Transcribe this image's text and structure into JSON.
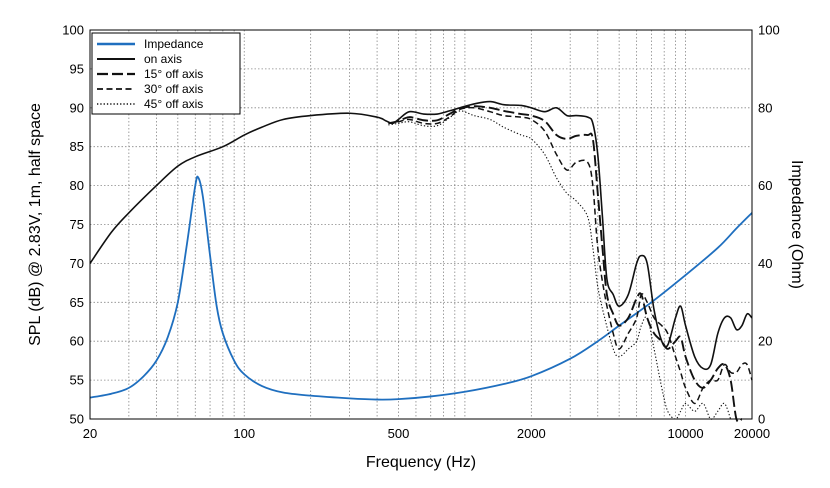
{
  "chart_data": {
    "type": "line",
    "xlabel": "Frequency (Hz)",
    "ylabel_left": "SPL (dB) @ 2.83V, 1m, half space",
    "ylabel_right": "Impedance (Ohm)",
    "x_scale": "log",
    "xlim": [
      20,
      20000
    ],
    "ylim_left": [
      50,
      100
    ],
    "ylim_right": [
      0,
      100
    ],
    "grid": true,
    "legend_position": "top-left",
    "x_tick_labels": [
      "20",
      "100",
      "500",
      "2000",
      "10000",
      "20000"
    ],
    "x_tick_values": [
      20,
      100,
      500,
      2000,
      10000,
      20000
    ],
    "y_left_ticks": [
      50,
      55,
      60,
      65,
      70,
      75,
      80,
      85,
      90,
      95,
      100
    ],
    "y_right_ticks": [
      0,
      20,
      40,
      60,
      80,
      100
    ],
    "series": [
      {
        "name": "Impedance",
        "axis": "right",
        "color": "#1f6fbf",
        "dash": "solid",
        "points": [
          [
            20,
            5.5
          ],
          [
            25,
            6.5
          ],
          [
            30,
            8
          ],
          [
            35,
            11
          ],
          [
            40,
            15
          ],
          [
            45,
            21
          ],
          [
            50,
            30
          ],
          [
            55,
            45
          ],
          [
            60,
            60
          ],
          [
            62,
            62
          ],
          [
            65,
            57
          ],
          [
            70,
            42
          ],
          [
            75,
            29
          ],
          [
            80,
            22
          ],
          [
            90,
            15
          ],
          [
            100,
            11.5
          ],
          [
            120,
            8.5
          ],
          [
            150,
            6.8
          ],
          [
            200,
            6
          ],
          [
            300,
            5.3
          ],
          [
            400,
            5
          ],
          [
            500,
            5.1
          ],
          [
            700,
            5.8
          ],
          [
            1000,
            7
          ],
          [
            1500,
            9
          ],
          [
            2000,
            11
          ],
          [
            3000,
            15.5
          ],
          [
            4000,
            20
          ],
          [
            5000,
            24
          ],
          [
            7000,
            30
          ],
          [
            10000,
            37
          ],
          [
            14000,
            44
          ],
          [
            17000,
            49
          ],
          [
            20000,
            53
          ]
        ]
      },
      {
        "name": "on axis",
        "axis": "left",
        "color": "#111111",
        "dash": "solid",
        "points": [
          [
            20,
            70
          ],
          [
            25,
            74
          ],
          [
            30,
            76.5
          ],
          [
            40,
            80
          ],
          [
            50,
            82.5
          ],
          [
            60,
            83.7
          ],
          [
            80,
            85
          ],
          [
            100,
            86.5
          ],
          [
            120,
            87.5
          ],
          [
            150,
            88.5
          ],
          [
            200,
            89
          ],
          [
            300,
            89.3
          ],
          [
            400,
            88.8
          ],
          [
            440,
            88.3
          ],
          [
            470,
            88
          ],
          [
            500,
            88.5
          ],
          [
            560,
            89.5
          ],
          [
            650,
            89.2
          ],
          [
            750,
            89.2
          ],
          [
            850,
            89.6
          ],
          [
            950,
            90
          ],
          [
            1100,
            90.5
          ],
          [
            1300,
            90.8
          ],
          [
            1500,
            90.4
          ],
          [
            1800,
            90.3
          ],
          [
            2000,
            90
          ],
          [
            2300,
            89.5
          ],
          [
            2600,
            90
          ],
          [
            2900,
            89
          ],
          [
            3200,
            89
          ],
          [
            3600,
            88.8
          ],
          [
            3800,
            88
          ],
          [
            4000,
            84
          ],
          [
            4200,
            76
          ],
          [
            4400,
            68
          ],
          [
            4700,
            66
          ],
          [
            5000,
            64.5
          ],
          [
            5500,
            66
          ],
          [
            6000,
            70
          ],
          [
            6300,
            71
          ],
          [
            6700,
            70
          ],
          [
            7200,
            64
          ],
          [
            7800,
            60
          ],
          [
            8300,
            59.5
          ],
          [
            9000,
            63
          ],
          [
            9500,
            64.5
          ],
          [
            10000,
            62
          ],
          [
            11000,
            58
          ],
          [
            12000,
            56.5
          ],
          [
            13000,
            57
          ],
          [
            14000,
            61
          ],
          [
            15000,
            63
          ],
          [
            16000,
            63
          ],
          [
            17000,
            61.5
          ],
          [
            18000,
            62
          ],
          [
            19000,
            63.5
          ],
          [
            20000,
            63
          ]
        ]
      },
      {
        "name": "15° off axis",
        "axis": "left",
        "color": "#111111",
        "dash": "long-dash",
        "points": [
          [
            450,
            88
          ],
          [
            500,
            88.3
          ],
          [
            560,
            88.8
          ],
          [
            650,
            88.4
          ],
          [
            750,
            88.4
          ],
          [
            850,
            89.2
          ],
          [
            950,
            89.9
          ],
          [
            1100,
            90.2
          ],
          [
            1300,
            90
          ],
          [
            1500,
            89.6
          ],
          [
            1800,
            89.2
          ],
          [
            2000,
            89
          ],
          [
            2300,
            88.3
          ],
          [
            2600,
            86.5
          ],
          [
            2900,
            86
          ],
          [
            3200,
            86.4
          ],
          [
            3600,
            86.5
          ],
          [
            3800,
            86
          ],
          [
            4000,
            79
          ],
          [
            4200,
            72
          ],
          [
            4400,
            66
          ],
          [
            4700,
            63.5
          ],
          [
            5000,
            62
          ],
          [
            5500,
            63
          ],
          [
            6000,
            65.5
          ],
          [
            6300,
            66
          ],
          [
            6700,
            63
          ],
          [
            7200,
            61
          ],
          [
            7800,
            60
          ],
          [
            8300,
            59
          ],
          [
            9000,
            60
          ],
          [
            9500,
            60.5
          ],
          [
            10000,
            58
          ],
          [
            11000,
            55
          ],
          [
            12000,
            54
          ],
          [
            13000,
            55
          ],
          [
            14000,
            56.5
          ],
          [
            15000,
            57
          ],
          [
            16000,
            55
          ],
          [
            17000,
            50
          ],
          [
            18000,
            50
          ]
        ]
      },
      {
        "name": "30° off axis",
        "axis": "left",
        "color": "#111111",
        "dash": "dash",
        "points": [
          [
            450,
            88
          ],
          [
            500,
            88.2
          ],
          [
            560,
            88.5
          ],
          [
            650,
            88
          ],
          [
            750,
            88
          ],
          [
            850,
            88.8
          ],
          [
            950,
            89.8
          ],
          [
            1100,
            90
          ],
          [
            1300,
            89.5
          ],
          [
            1500,
            89
          ],
          [
            1800,
            88.8
          ],
          [
            2000,
            88.5
          ],
          [
            2300,
            87
          ],
          [
            2600,
            84
          ],
          [
            2900,
            82
          ],
          [
            3200,
            83
          ],
          [
            3600,
            83
          ],
          [
            3800,
            80
          ],
          [
            4000,
            72
          ],
          [
            4300,
            66
          ],
          [
            4700,
            61
          ],
          [
            5000,
            59
          ],
          [
            5500,
            61
          ],
          [
            6000,
            63
          ],
          [
            6300,
            66
          ],
          [
            6700,
            65
          ],
          [
            7200,
            63
          ],
          [
            7800,
            62
          ],
          [
            8300,
            61
          ],
          [
            9000,
            58
          ],
          [
            9500,
            56
          ],
          [
            10000,
            54
          ],
          [
            11000,
            52
          ],
          [
            12000,
            54
          ],
          [
            13000,
            55
          ],
          [
            14000,
            55
          ],
          [
            15000,
            57
          ],
          [
            16000,
            56
          ],
          [
            17000,
            56
          ],
          [
            18000,
            57
          ],
          [
            19000,
            57
          ],
          [
            20000,
            55
          ]
        ]
      },
      {
        "name": "45° off axis",
        "axis": "left",
        "color": "#111111",
        "dash": "dot",
        "points": [
          [
            450,
            87.8
          ],
          [
            500,
            88
          ],
          [
            560,
            88.2
          ],
          [
            650,
            87.7
          ],
          [
            750,
            87.7
          ],
          [
            850,
            88.7
          ],
          [
            950,
            89.6
          ],
          [
            1100,
            89
          ],
          [
            1300,
            88.5
          ],
          [
            1500,
            87.5
          ],
          [
            1800,
            86.5
          ],
          [
            2000,
            86
          ],
          [
            2300,
            84
          ],
          [
            2600,
            81
          ],
          [
            2900,
            79
          ],
          [
            3200,
            78
          ],
          [
            3600,
            76
          ],
          [
            3800,
            72
          ],
          [
            4000,
            67
          ],
          [
            4300,
            63
          ],
          [
            4700,
            59
          ],
          [
            5000,
            58
          ],
          [
            5500,
            59
          ],
          [
            6000,
            60
          ],
          [
            6300,
            62
          ],
          [
            6700,
            63
          ],
          [
            7200,
            59
          ],
          [
            7800,
            54
          ],
          [
            8300,
            51
          ],
          [
            9000,
            50
          ],
          [
            9500,
            51
          ],
          [
            10000,
            52
          ],
          [
            11000,
            51
          ],
          [
            12000,
            52
          ],
          [
            13000,
            50
          ],
          [
            14000,
            51
          ],
          [
            15000,
            52
          ],
          [
            16000,
            50
          ]
        ]
      }
    ]
  }
}
